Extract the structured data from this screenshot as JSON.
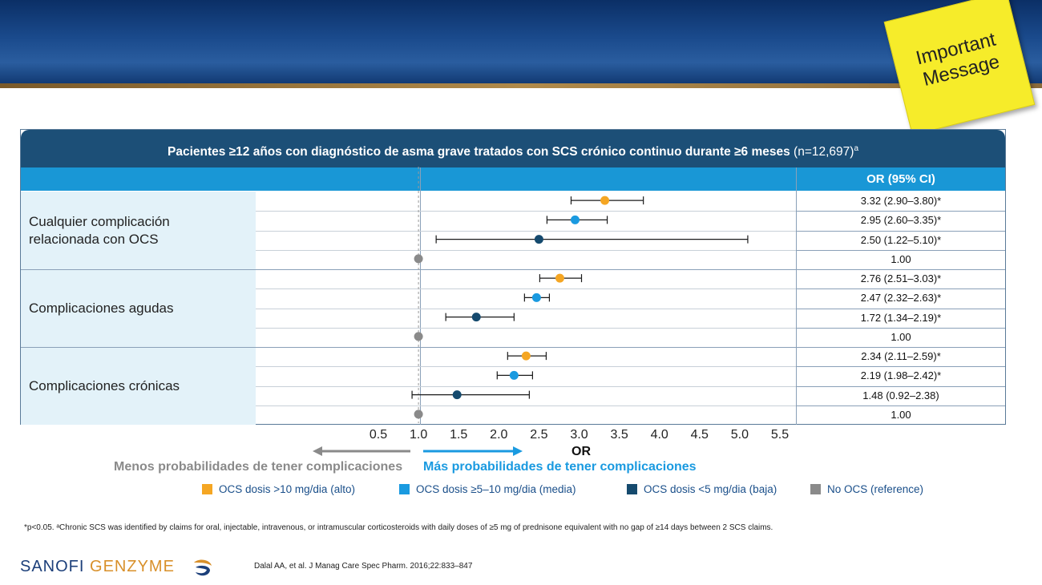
{
  "sticky_note": {
    "line1": "Important",
    "line2": "Message"
  },
  "chart_data": {
    "type": "forest",
    "title": "Pacientes ≥12 años con diagnóstico de asma grave tratados con SCS crónico continuo durante ≥6 meses",
    "title_n": "(n=12,697)",
    "title_sup": "a",
    "or_header": "OR (95% CI)",
    "xlabel": "OR",
    "xlim": [
      0.5,
      5.5
    ],
    "x_ticks": [
      "0.5",
      "1.0",
      "1.5",
      "2.0",
      "2.5",
      "3.0",
      "3.5",
      "4.0",
      "4.5",
      "5.0",
      "5.5"
    ],
    "reference_line": 1.0,
    "direction_labels": {
      "left": "Menos probabilidades de tener complicaciones",
      "right": "Más probabilidades de tener complicaciones"
    },
    "series": [
      {
        "name": "OCS dosis >10 mg/dia (alto)",
        "color": "#f5a623"
      },
      {
        "name": "OCS dosis ≥5–10 mg/dia (media)",
        "color": "#1a9ae0"
      },
      {
        "name": "OCS dosis <5 mg/dia (baja)",
        "color": "#154a6e"
      },
      {
        "name": "No OCS (reference)",
        "color": "#8a8a8a"
      }
    ],
    "groups": [
      {
        "label_line1": "Cualquier complicación",
        "label_line2": "relacionada con OCS",
        "rows": [
          {
            "series": 0,
            "or": 3.32,
            "lo": 2.9,
            "hi": 3.8,
            "text": "3.32 (2.90–3.80)*"
          },
          {
            "series": 1,
            "or": 2.95,
            "lo": 2.6,
            "hi": 3.35,
            "text": "2.95 (2.60–3.35)*"
          },
          {
            "series": 2,
            "or": 2.5,
            "lo": 1.22,
            "hi": 5.1,
            "text": "2.50 (1.22–5.10)*"
          },
          {
            "series": 3,
            "or": 1.0,
            "lo": 1.0,
            "hi": 1.0,
            "text": "1.00"
          }
        ]
      },
      {
        "label_line1": "Complicaciones agudas",
        "label_line2": "",
        "rows": [
          {
            "series": 0,
            "or": 2.76,
            "lo": 2.51,
            "hi": 3.03,
            "text": "2.76 (2.51–3.03)*"
          },
          {
            "series": 1,
            "or": 2.47,
            "lo": 2.32,
            "hi": 2.63,
            "text": "2.47 (2.32–2.63)*"
          },
          {
            "series": 2,
            "or": 1.72,
            "lo": 1.34,
            "hi": 2.19,
            "text": "1.72 (1.34–2.19)*"
          },
          {
            "series": 3,
            "or": 1.0,
            "lo": 1.0,
            "hi": 1.0,
            "text": "1.00"
          }
        ]
      },
      {
        "label_line1": "Complicaciones crónicas",
        "label_line2": "",
        "rows": [
          {
            "series": 0,
            "or": 2.34,
            "lo": 2.11,
            "hi": 2.59,
            "text": "2.34 (2.11–2.59)*"
          },
          {
            "series": 1,
            "or": 2.19,
            "lo": 1.98,
            "hi": 2.42,
            "text": "2.19 (1.98–2.42)*"
          },
          {
            "series": 2,
            "or": 1.48,
            "lo": 0.92,
            "hi": 2.38,
            "text": "1.48 (0.92–2.38)"
          },
          {
            "series": 3,
            "or": 1.0,
            "lo": 1.0,
            "hi": 1.0,
            "text": "1.00"
          }
        ]
      }
    ]
  },
  "footnote": "*p<0.05. ᵃChronic SCS was identified by claims for oral, injectable, intravenous, or intramuscular corticosteroids with daily doses of ≥5 mg of prednisone equivalent with no gap of ≥14 days between 2 SCS claims.",
  "citation": "Dalal AA, et al. J Manag Care Spec Pharm. 2016;22:833–847",
  "logo": {
    "part1": "SANOFI",
    "part2": "GENZYME"
  }
}
